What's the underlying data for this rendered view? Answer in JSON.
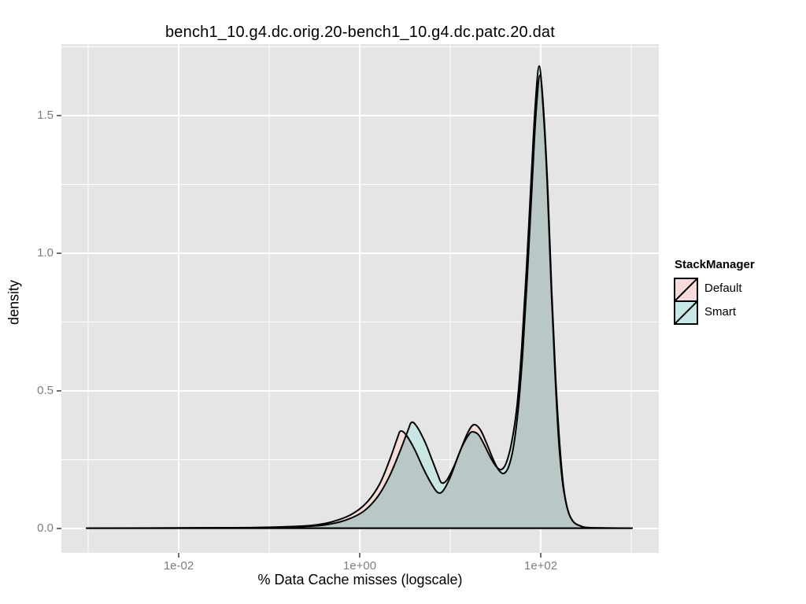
{
  "figure": {
    "title": "bench1_10.g4.dc.orig.20-bench1_10.g4.dc.patc.20.dat",
    "background": "#FFFFFF"
  },
  "chart_data": {
    "type": "area",
    "subtype": "density-curves-logx",
    "title": "bench1_10.g4.dc.orig.20-bench1_10.g4.dc.patc.20.dat",
    "xlabel": "% Data Cache misses (logscale)",
    "ylabel": "density",
    "x_scale": "log10",
    "xlim_log10": [
      -3.296,
      3.304
    ],
    "ylim": [
      -0.089,
      1.76
    ],
    "grid": "on",
    "legend_position": "right",
    "panel_bg": "#E5E5E5",
    "grid_major_color": "#FFFFFF",
    "grid_minor_color": "#FFFFFF",
    "tick_mark_color": "#333333",
    "tick_label_color": "#7E7E7E",
    "outline_color": "#000000",
    "overlap_fill": "#B9C8C6",
    "x_axis": {
      "ticks": [
        {
          "label": "1e-02",
          "value": 0.01
        },
        {
          "label": "1e+00",
          "value": 1
        },
        {
          "label": "1e+02",
          "value": 100
        }
      ],
      "minor_values": [
        0.001,
        0.1,
        10,
        1000
      ]
    },
    "y_axis": {
      "ticks": [
        {
          "label": "0.0",
          "value": 0
        },
        {
          "label": "0.5",
          "value": 0.5
        },
        {
          "label": "1.0",
          "value": 1
        },
        {
          "label": "1.5",
          "value": 1.5
        }
      ],
      "minor_values": [
        0.25,
        0.75,
        1.25,
        1.75
      ]
    },
    "series": [
      {
        "name": "Default",
        "fill": "#F3DCDA",
        "stroke": "#000000",
        "points": [
          [
            0.00096,
            0.001
          ],
          [
            0.043,
            0.003
          ],
          [
            0.143,
            0.006
          ],
          [
            0.289,
            0.011
          ],
          [
            0.477,
            0.023
          ],
          [
            0.787,
            0.049
          ],
          [
            1.17,
            0.091
          ],
          [
            1.65,
            0.16
          ],
          [
            2.14,
            0.249
          ],
          [
            2.61,
            0.329
          ],
          [
            2.83,
            0.354
          ],
          [
            3.26,
            0.34
          ],
          [
            4.06,
            0.286
          ],
          [
            5.06,
            0.217
          ],
          [
            6.18,
            0.163
          ],
          [
            7.26,
            0.131
          ],
          [
            8.34,
            0.137
          ],
          [
            10.0,
            0.186
          ],
          [
            12.5,
            0.271
          ],
          [
            15.5,
            0.346
          ],
          [
            18.2,
            0.377
          ],
          [
            21.4,
            0.36
          ],
          [
            25.1,
            0.311
          ],
          [
            30.0,
            0.249
          ],
          [
            34.6,
            0.211
          ],
          [
            39.0,
            0.2
          ],
          [
            44.0,
            0.223
          ],
          [
            49.6,
            0.291
          ],
          [
            55.9,
            0.423
          ],
          [
            63.1,
            0.634
          ],
          [
            71.1,
            0.92
          ],
          [
            80.2,
            1.249
          ],
          [
            88.7,
            1.511
          ],
          [
            98.0,
            1.646
          ],
          [
            108,
            1.511
          ],
          [
            120,
            1.22
          ],
          [
            132,
            0.863
          ],
          [
            146,
            0.549
          ],
          [
            162,
            0.306
          ],
          [
            179,
            0.149
          ],
          [
            201,
            0.063
          ],
          [
            232,
            0.023
          ],
          [
            278,
            0.009
          ],
          [
            353,
            0.003
          ],
          [
            1020,
            0.001
          ]
        ]
      },
      {
        "name": "Smart",
        "fill": "#C9E6E3",
        "stroke": "#000000",
        "points": [
          [
            0.00096,
            0.001
          ],
          [
            0.079,
            0.003
          ],
          [
            0.236,
            0.007
          ],
          [
            0.431,
            0.014
          ],
          [
            0.711,
            0.031
          ],
          [
            1.11,
            0.063
          ],
          [
            1.59,
            0.117
          ],
          [
            2.14,
            0.191
          ],
          [
            2.78,
            0.28
          ],
          [
            3.39,
            0.354
          ],
          [
            3.75,
            0.386
          ],
          [
            4.31,
            0.369
          ],
          [
            5.27,
            0.314
          ],
          [
            6.31,
            0.249
          ],
          [
            7.26,
            0.197
          ],
          [
            8.02,
            0.166
          ],
          [
            9.23,
            0.177
          ],
          [
            11.1,
            0.229
          ],
          [
            13.5,
            0.297
          ],
          [
            16.2,
            0.343
          ],
          [
            17.9,
            0.351
          ],
          [
            20.6,
            0.34
          ],
          [
            23.6,
            0.306
          ],
          [
            28.3,
            0.254
          ],
          [
            32.6,
            0.223
          ],
          [
            36.7,
            0.214
          ],
          [
            41.4,
            0.237
          ],
          [
            47.6,
            0.311
          ],
          [
            54.8,
            0.449
          ],
          [
            61.8,
            0.663
          ],
          [
            69.7,
            0.949
          ],
          [
            78.7,
            1.277
          ],
          [
            86.9,
            1.534
          ],
          [
            96.1,
            1.68
          ],
          [
            106,
            1.534
          ],
          [
            118,
            1.249
          ],
          [
            130,
            0.891
          ],
          [
            144,
            0.563
          ],
          [
            158,
            0.32
          ],
          [
            175,
            0.163
          ],
          [
            198,
            0.069
          ],
          [
            227,
            0.026
          ],
          [
            272,
            0.01
          ],
          [
            339,
            0.003
          ],
          [
            1020,
            0.001
          ]
        ]
      }
    ]
  },
  "legend": {
    "title": "StackManager",
    "items": [
      {
        "label": "Default",
        "fill": "#F5DBDC"
      },
      {
        "label": "Smart",
        "fill": "#C8E8E5"
      }
    ]
  }
}
